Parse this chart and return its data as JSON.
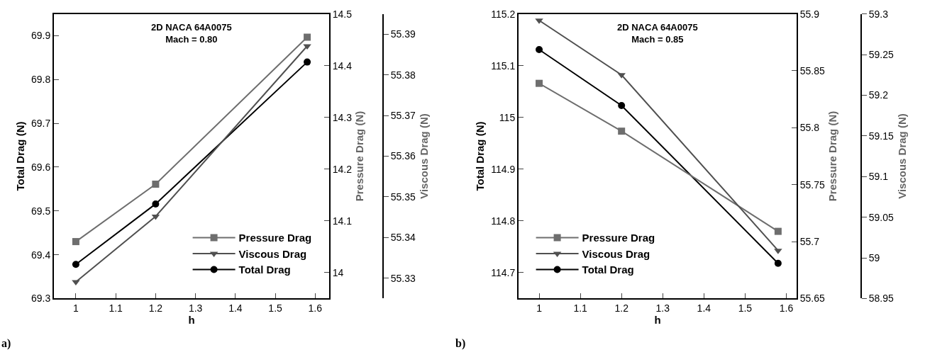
{
  "chart_data": [
    {
      "type": "line",
      "title": "2D NACA 64A0075\nMach = 0.80",
      "xlabel": "h",
      "ylabel": "Total Drag (N)",
      "y2label": "Pressure Drag (N)",
      "y3label": "Viscous Drag (N)",
      "x": [
        1,
        1.2,
        1.58
      ],
      "xlim": [
        0.945,
        1.635
      ],
      "xticks": [
        1,
        1.1,
        1.2,
        1.3,
        1.4,
        1.5,
        1.6
      ],
      "ylim": [
        69.3,
        69.95
      ],
      "yticks": [
        69.3,
        69.4,
        69.5,
        69.6,
        69.7,
        69.8,
        69.9
      ],
      "y2lim": [
        13.95,
        14.5
      ],
      "y2ticks": [
        14,
        14.1,
        14.2,
        14.3,
        14.4,
        14.5
      ],
      "y3lim": [
        55.325,
        55.395
      ],
      "y3ticks": [
        55.33,
        55.34,
        55.35,
        55.36,
        55.37,
        55.38,
        55.39
      ],
      "series": [
        {
          "name": "Pressure Drag",
          "color": "#6e6e6e",
          "axis": "y2",
          "marker": "square",
          "values": [
            14.06,
            14.171,
            14.455
          ]
        },
        {
          "name": "Viscous Drag",
          "color": "#505050",
          "axis": "y3",
          "marker": "triangle",
          "values": [
            55.3291,
            55.3452,
            55.3871
          ]
        },
        {
          "name": "Total Drag",
          "color": "#000000",
          "axis": "y",
          "marker": "circle",
          "values": [
            69.378,
            69.516,
            69.84
          ]
        }
      ],
      "legend": "bottom right",
      "annotations": [
        "a)"
      ]
    },
    {
      "type": "line",
      "title": "2D NACA 64A0075\nMach = 0.85",
      "xlabel": "h",
      "ylabel": "Total Drag (N)",
      "y2label": "Pressure Drag (N)",
      "y3label": "Viscous Drag (N)",
      "x": [
        1,
        1.2,
        1.58
      ],
      "xlim": [
        0.95,
        1.625
      ],
      "xticks": [
        1,
        1.1,
        1.2,
        1.3,
        1.4,
        1.5,
        1.6
      ],
      "ylim": [
        114.65,
        115.2
      ],
      "yticks": [
        114.7,
        114.8,
        114.9,
        115,
        115.1,
        115.2
      ],
      "y2lim": [
        55.65,
        55.9
      ],
      "y2ticks": [
        55.65,
        55.7,
        55.75,
        55.8,
        55.85,
        55.9
      ],
      "y3lim": [
        58.95,
        59.3
      ],
      "y3ticks": [
        58.95,
        59,
        59.05,
        59.1,
        59.15,
        59.2,
        59.25,
        59.3
      ],
      "series": [
        {
          "name": "Pressure Drag",
          "color": "#6e6e6e",
          "axis": "y2",
          "marker": "square",
          "values": [
            55.839,
            55.797,
            55.709
          ]
        },
        {
          "name": "Viscous Drag",
          "color": "#505050",
          "axis": "y3",
          "marker": "triangle",
          "values": [
            59.292,
            59.225,
            59.009
          ]
        },
        {
          "name": "Total Drag",
          "color": "#000000",
          "axis": "y",
          "marker": "circle",
          "values": [
            115.131,
            115.023,
            114.718
          ]
        }
      ],
      "legend": "bottom left",
      "annotations": [
        "b)"
      ]
    }
  ]
}
